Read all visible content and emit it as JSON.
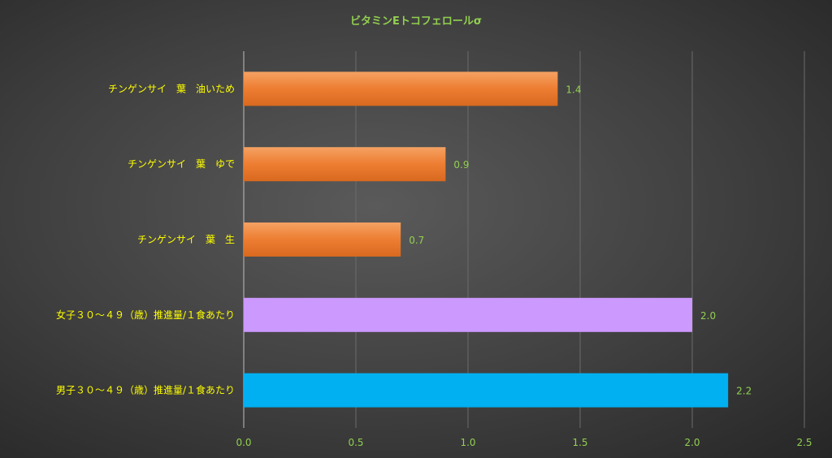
{
  "chart_data": {
    "type": "bar",
    "orientation": "horizontal",
    "title": "ビタミンEトコフェロールσ",
    "categories": [
      "チンゲンサイ　葉　油いため",
      "チンゲンサイ　葉　ゆで",
      "チンゲンサイ　葉　生",
      "女子３０～４９（歳）推進量/１食あたり",
      "男子３０～４９（歳）推進量/１食あたり"
    ],
    "values": [
      1.4,
      0.9,
      0.7,
      2.0,
      2.16
    ],
    "data_labels": [
      "1.4",
      "0.9",
      "0.7",
      "2.0",
      "2.2"
    ],
    "bar_colors": [
      "#ED7D31",
      "#ED7D31",
      "#ED7D31",
      "#CC99FF",
      "#00B0F0"
    ],
    "xlim": [
      0,
      2.5
    ],
    "x_ticks": [
      "0.0",
      "0.5",
      "1.0",
      "1.5",
      "2.0",
      "2.5"
    ],
    "x_tick_values": [
      0,
      0.5,
      1.0,
      1.5,
      2.0,
      2.5
    ],
    "grid": "vertical",
    "legend": "none",
    "colors": {
      "title": "#92D050",
      "category_label": "#FFFF00",
      "value_label": "#92D050",
      "tick_label": "#92D050",
      "gridline": "#6b6b6b"
    }
  }
}
